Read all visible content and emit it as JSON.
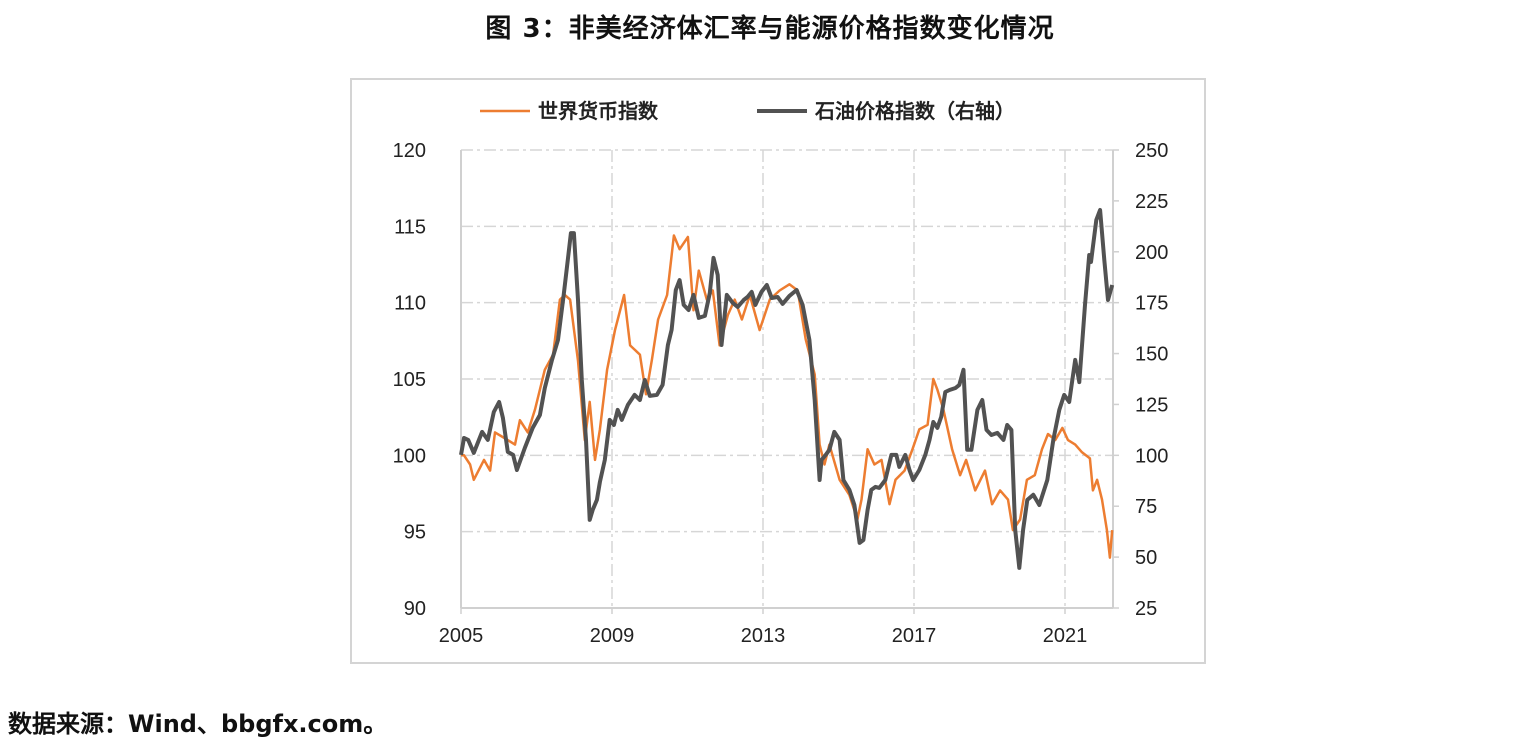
{
  "title": "图 3：非美经济体汇率与能源价格指数变化情况",
  "source": "数据来源：Wind、bbgfx.com。",
  "chart_data": {
    "type": "line",
    "title": "图 3：非美经济体汇率与能源价格指数变化情况",
    "legend_position": "top",
    "grid": true,
    "x_ticks": [
      "2005",
      "2009",
      "2013",
      "2017",
      "2021"
    ],
    "xlim": [
      2005,
      2022.25
    ],
    "left_axis": {
      "ylim": [
        90,
        120
      ],
      "ticks": [
        "120",
        "115",
        "110",
        "105",
        "100",
        "95",
        "90"
      ]
    },
    "right_axis": {
      "ylim": [
        25,
        250
      ],
      "ticks": [
        "250",
        "225",
        "200",
        "175",
        "150",
        "125",
        "100",
        "75",
        "50",
        "25"
      ]
    },
    "series": [
      {
        "name": "世界货币指数",
        "axis": "left",
        "color": "#ed7d31",
        "points": [
          [
            2005.0,
            100.0
          ],
          [
            2005.08,
            100.0
          ],
          [
            2005.24,
            99.4
          ],
          [
            2005.34,
            98.4
          ],
          [
            2005.61,
            99.7
          ],
          [
            2005.77,
            99.0
          ],
          [
            2005.9,
            101.5
          ],
          [
            2006.17,
            101.1
          ],
          [
            2006.43,
            100.7
          ],
          [
            2006.56,
            102.3
          ],
          [
            2006.77,
            101.5
          ],
          [
            2006.96,
            103.0
          ],
          [
            2007.22,
            105.6
          ],
          [
            2007.44,
            106.6
          ],
          [
            2007.62,
            110.2
          ],
          [
            2007.75,
            110.5
          ],
          [
            2007.89,
            110.2
          ],
          [
            2008.1,
            106.2
          ],
          [
            2008.28,
            101.0
          ],
          [
            2008.41,
            103.5
          ],
          [
            2008.55,
            99.7
          ],
          [
            2008.68,
            101.7
          ],
          [
            2008.87,
            105.6
          ],
          [
            2009.08,
            108.2
          ],
          [
            2009.32,
            110.5
          ],
          [
            2009.48,
            107.2
          ],
          [
            2009.74,
            106.6
          ],
          [
            2009.9,
            104.0
          ],
          [
            2010.06,
            106.3
          ],
          [
            2010.22,
            108.9
          ],
          [
            2010.46,
            110.5
          ],
          [
            2010.64,
            114.4
          ],
          [
            2010.79,
            113.5
          ],
          [
            2011.01,
            114.3
          ],
          [
            2011.16,
            109.5
          ],
          [
            2011.3,
            112.1
          ],
          [
            2011.51,
            110.2
          ],
          [
            2011.67,
            110.8
          ],
          [
            2011.85,
            107.2
          ],
          [
            2012.07,
            109.2
          ],
          [
            2012.25,
            110.2
          ],
          [
            2012.44,
            108.9
          ],
          [
            2012.65,
            110.5
          ],
          [
            2012.91,
            108.2
          ],
          [
            2013.18,
            110.2
          ],
          [
            2013.44,
            110.8
          ],
          [
            2013.7,
            111.2
          ],
          [
            2013.92,
            110.8
          ],
          [
            2014.13,
            107.6
          ],
          [
            2014.37,
            105.3
          ],
          [
            2014.5,
            100.7
          ],
          [
            2014.63,
            99.4
          ],
          [
            2014.76,
            100.7
          ],
          [
            2015.03,
            98.4
          ],
          [
            2015.29,
            97.4
          ],
          [
            2015.5,
            95.8
          ],
          [
            2015.61,
            97.1
          ],
          [
            2015.77,
            100.4
          ],
          [
            2015.95,
            99.4
          ],
          [
            2016.14,
            99.7
          ],
          [
            2016.35,
            96.8
          ],
          [
            2016.51,
            98.4
          ],
          [
            2016.75,
            99.0
          ],
          [
            2016.96,
            100.4
          ],
          [
            2017.14,
            101.7
          ],
          [
            2017.36,
            102.0
          ],
          [
            2017.51,
            105.0
          ],
          [
            2017.62,
            104.3
          ],
          [
            2017.78,
            103.0
          ],
          [
            2018.01,
            100.4
          ],
          [
            2018.22,
            98.7
          ],
          [
            2018.38,
            99.7
          ],
          [
            2018.62,
            97.7
          ],
          [
            2018.88,
            99.0
          ],
          [
            2019.07,
            96.8
          ],
          [
            2019.28,
            97.7
          ],
          [
            2019.49,
            97.1
          ],
          [
            2019.62,
            95.1
          ],
          [
            2019.81,
            95.8
          ],
          [
            2019.99,
            98.4
          ],
          [
            2020.2,
            98.7
          ],
          [
            2020.39,
            100.4
          ],
          [
            2020.55,
            101.4
          ],
          [
            2020.74,
            101.0
          ],
          [
            2020.93,
            101.8
          ],
          [
            2021.08,
            101.0
          ],
          [
            2021.27,
            100.7
          ],
          [
            2021.45,
            100.2
          ],
          [
            2021.66,
            99.8
          ],
          [
            2021.74,
            97.7
          ],
          [
            2021.85,
            98.4
          ],
          [
            2021.98,
            97.1
          ],
          [
            2022.11,
            95.1
          ],
          [
            2022.19,
            93.3
          ],
          [
            2022.25,
            95.1
          ]
        ]
      },
      {
        "name": "石油价格指数（右轴）",
        "axis": "right",
        "color": "#525252",
        "points": [
          [
            2005.0,
            100.2
          ],
          [
            2005.08,
            108.5
          ],
          [
            2005.19,
            107.6
          ],
          [
            2005.34,
            101.2
          ],
          [
            2005.56,
            111.5
          ],
          [
            2005.71,
            107.6
          ],
          [
            2005.87,
            121.3
          ],
          [
            2006.01,
            126.2
          ],
          [
            2006.11,
            118.4
          ],
          [
            2006.24,
            101.7
          ],
          [
            2006.38,
            100.2
          ],
          [
            2006.48,
            92.8
          ],
          [
            2006.69,
            103.6
          ],
          [
            2006.9,
            113.5
          ],
          [
            2007.09,
            119.8
          ],
          [
            2007.22,
            133.1
          ],
          [
            2007.41,
            146.9
          ],
          [
            2007.57,
            156.7
          ],
          [
            2007.72,
            178.8
          ],
          [
            2007.83,
            196.0
          ],
          [
            2007.91,
            209.2
          ],
          [
            2007.99,
            209.2
          ],
          [
            2008.1,
            176.3
          ],
          [
            2008.2,
            137.0
          ],
          [
            2008.31,
            107.6
          ],
          [
            2008.41,
            68.3
          ],
          [
            2008.49,
            73.2
          ],
          [
            2008.6,
            78.1
          ],
          [
            2008.68,
            86.9
          ],
          [
            2008.81,
            97.7
          ],
          [
            2008.94,
            117.4
          ],
          [
            2009.05,
            114.9
          ],
          [
            2009.15,
            122.3
          ],
          [
            2009.26,
            117.4
          ],
          [
            2009.42,
            124.8
          ],
          [
            2009.6,
            129.7
          ],
          [
            2009.74,
            127.2
          ],
          [
            2009.87,
            137.0
          ],
          [
            2010.0,
            129.2
          ],
          [
            2010.19,
            129.7
          ],
          [
            2010.34,
            134.6
          ],
          [
            2010.48,
            154.2
          ],
          [
            2010.58,
            161.6
          ],
          [
            2010.69,
            181.2
          ],
          [
            2010.79,
            186.1
          ],
          [
            2010.9,
            173.9
          ],
          [
            2011.03,
            171.4
          ],
          [
            2011.16,
            178.8
          ],
          [
            2011.3,
            167.5
          ],
          [
            2011.46,
            168.5
          ],
          [
            2011.59,
            179.8
          ],
          [
            2011.69,
            197.0
          ],
          [
            2011.8,
            188.6
          ],
          [
            2011.9,
            154.2
          ],
          [
            2012.04,
            178.8
          ],
          [
            2012.2,
            174.9
          ],
          [
            2012.33,
            172.9
          ],
          [
            2012.49,
            176.3
          ],
          [
            2012.59,
            177.8
          ],
          [
            2012.7,
            180.3
          ],
          [
            2012.8,
            173.9
          ],
          [
            2012.96,
            180.3
          ],
          [
            2013.1,
            183.7
          ],
          [
            2013.23,
            177.3
          ],
          [
            2013.39,
            177.8
          ],
          [
            2013.52,
            174.4
          ],
          [
            2013.7,
            178.3
          ],
          [
            2013.89,
            181.2
          ],
          [
            2014.05,
            173.9
          ],
          [
            2014.23,
            156.7
          ],
          [
            2014.37,
            127.2
          ],
          [
            2014.5,
            87.9
          ],
          [
            2014.55,
            97.7
          ],
          [
            2014.66,
            100.2
          ],
          [
            2014.76,
            102.7
          ],
          [
            2014.89,
            111.5
          ],
          [
            2015.03,
            107.6
          ],
          [
            2015.13,
            87.9
          ],
          [
            2015.29,
            83.0
          ],
          [
            2015.42,
            75.6
          ],
          [
            2015.56,
            57.0
          ],
          [
            2015.66,
            58.4
          ],
          [
            2015.77,
            73.2
          ],
          [
            2015.87,
            83.0
          ],
          [
            2015.98,
            84.5
          ],
          [
            2016.08,
            84.0
          ],
          [
            2016.24,
            87.9
          ],
          [
            2016.4,
            100.2
          ],
          [
            2016.53,
            100.2
          ],
          [
            2016.61,
            94.3
          ],
          [
            2016.77,
            100.2
          ],
          [
            2016.88,
            92.8
          ],
          [
            2016.98,
            87.9
          ],
          [
            2017.14,
            92.8
          ],
          [
            2017.3,
            100.2
          ],
          [
            2017.41,
            107.6
          ],
          [
            2017.51,
            116.4
          ],
          [
            2017.62,
            113.5
          ],
          [
            2017.72,
            118.9
          ],
          [
            2017.83,
            131.1
          ],
          [
            2017.94,
            132.1
          ],
          [
            2018.1,
            133.1
          ],
          [
            2018.2,
            134.6
          ],
          [
            2018.31,
            142.0
          ],
          [
            2018.41,
            102.7
          ],
          [
            2018.52,
            102.7
          ],
          [
            2018.68,
            122.3
          ],
          [
            2018.81,
            127.2
          ],
          [
            2018.92,
            112.5
          ],
          [
            2019.05,
            110.0
          ],
          [
            2019.21,
            111.0
          ],
          [
            2019.37,
            107.6
          ],
          [
            2019.47,
            114.9
          ],
          [
            2019.58,
            112.5
          ],
          [
            2019.68,
            63.4
          ],
          [
            2019.79,
            44.7
          ],
          [
            2019.89,
            63.4
          ],
          [
            2020.0,
            78.1
          ],
          [
            2020.16,
            80.6
          ],
          [
            2020.32,
            75.6
          ],
          [
            2020.53,
            87.9
          ],
          [
            2020.69,
            107.6
          ],
          [
            2020.85,
            122.3
          ],
          [
            2020.98,
            129.7
          ],
          [
            2021.11,
            126.2
          ],
          [
            2021.27,
            146.9
          ],
          [
            2021.38,
            136.0
          ],
          [
            2021.53,
            173.9
          ],
          [
            2021.64,
            198.4
          ],
          [
            2021.69,
            195.0
          ],
          [
            2021.83,
            215.6
          ],
          [
            2021.93,
            220.5
          ],
          [
            2022.04,
            196.0
          ],
          [
            2022.14,
            176.3
          ],
          [
            2022.25,
            183.7
          ]
        ]
      }
    ]
  }
}
